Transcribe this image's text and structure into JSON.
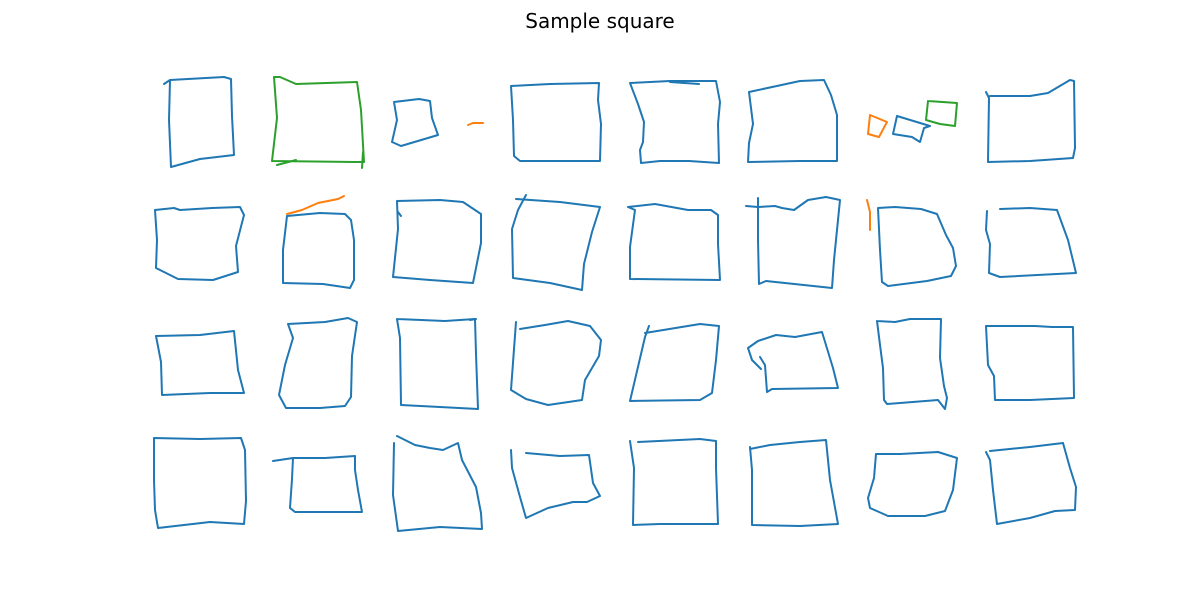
{
  "title": "Sample square",
  "colors": {
    "blue": "#1f77b4",
    "orange": "#ff7f0e",
    "green": "#2ca02c"
  },
  "grid": {
    "rows": 4,
    "cols": 8
  }
}
